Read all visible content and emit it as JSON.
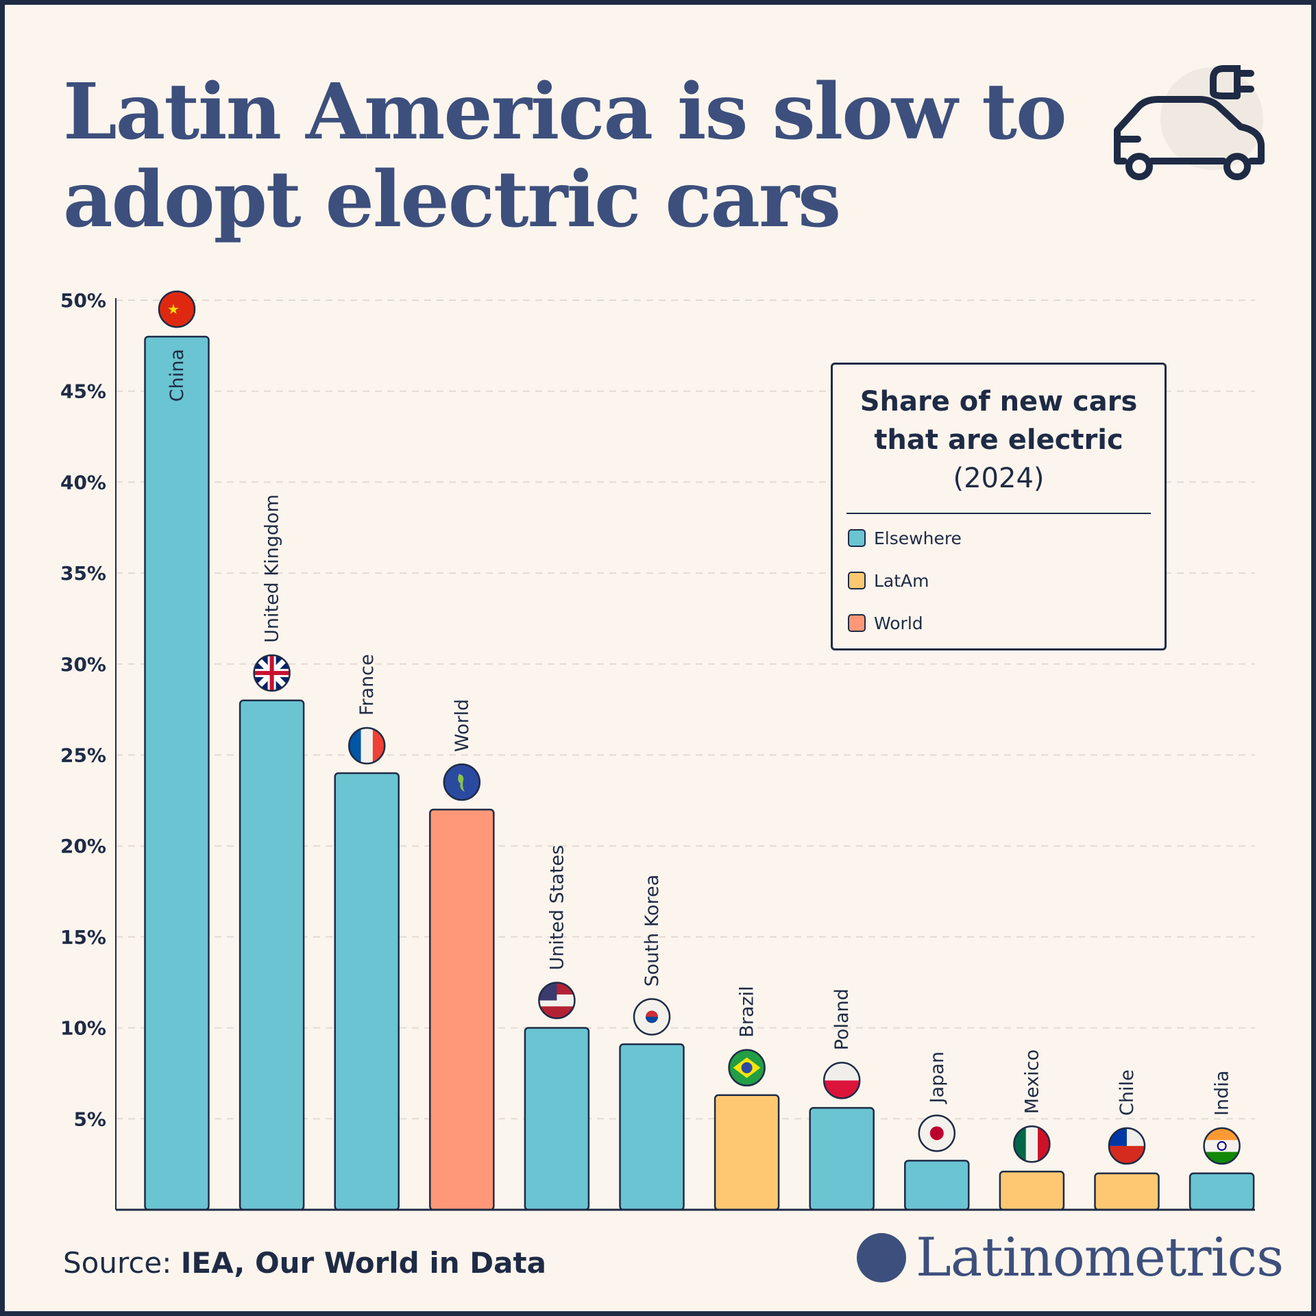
{
  "title_lines": [
    "Latin America is slow to",
    "adopt electric cars"
  ],
  "legend": {
    "title_lines": [
      "Share of new cars",
      "that are electric"
    ],
    "year": "(2024)",
    "items": [
      {
        "label": "Elsewhere",
        "color": "#6ac4d2"
      },
      {
        "label": "LatAm",
        "color": "#fdc871"
      },
      {
        "label": "World",
        "color": "#ff9878"
      }
    ]
  },
  "source": {
    "prefix": "Source:",
    "text": "IEA, Our World in Data"
  },
  "brand": "Latinometrics",
  "icons": {
    "top_right": "electric-car-plug-icon",
    "brand": "latin-america-map-logo"
  },
  "chart_data": {
    "type": "bar",
    "title": "Share of new cars that are electric (2024)",
    "categories": [
      "China",
      "United Kingdom",
      "France",
      "World",
      "United States",
      "South Korea",
      "Brazil",
      "Poland",
      "Japan",
      "Mexico",
      "Chile",
      "India"
    ],
    "values": [
      48,
      28,
      24,
      22,
      10,
      9.1,
      6.3,
      5.6,
      2.7,
      2.1,
      2.0,
      2.0
    ],
    "groups": [
      "Elsewhere",
      "Elsewhere",
      "Elsewhere",
      "World",
      "Elsewhere",
      "Elsewhere",
      "LatAm",
      "Elsewhere",
      "Elsewhere",
      "LatAm",
      "LatAm",
      "Elsewhere"
    ],
    "unit": "%",
    "ylim": [
      0,
      50
    ],
    "yticks": [
      "5%",
      "10%",
      "15%",
      "20%",
      "25%",
      "30%",
      "35%",
      "40%",
      "45%",
      "50%"
    ],
    "grid": true,
    "legend_position": "top-right"
  }
}
